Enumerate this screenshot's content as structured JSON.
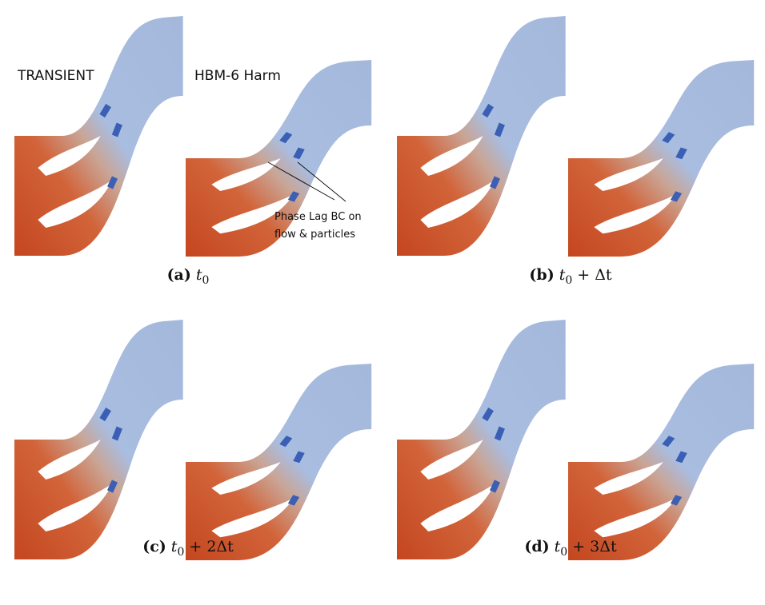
{
  "figure": {
    "labels": {
      "transient": "TRANSIENT",
      "hbm": "HBM-6 Harm",
      "annotation": [
        "Phase Lag BC on",
        "flow & particles"
      ]
    },
    "panels": [
      {
        "tag": "(a)",
        "var": "t",
        "sub": "0"
      },
      {
        "tag": "(b)",
        "var": "t",
        "sub": "0",
        "rest": "+ Δt"
      },
      {
        "tag": "(c)",
        "var": "t",
        "sub": "0",
        "rest": "+ 2Δt"
      },
      {
        "tag": "(d)",
        "var": "t",
        "sub": "0",
        "rest": "+ 3Δt"
      }
    ]
  }
}
